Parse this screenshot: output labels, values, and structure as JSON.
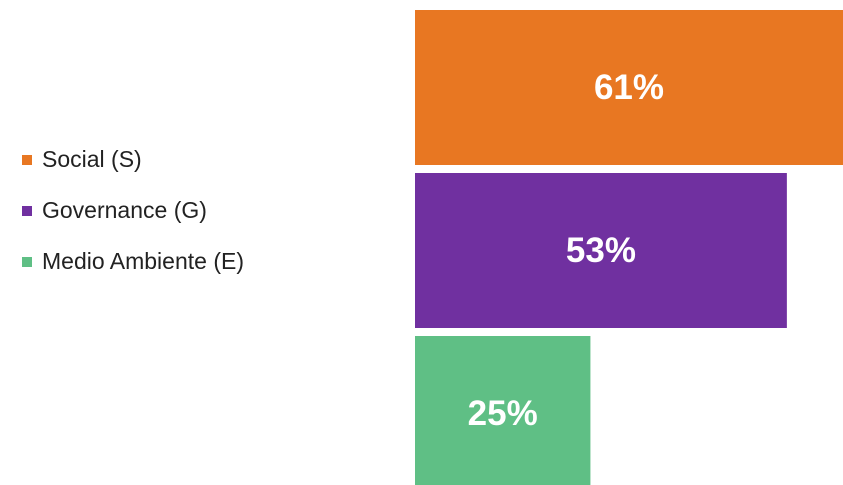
{
  "chart_data": {
    "type": "bar",
    "orientation": "horizontal",
    "categories": [
      "Social (S)",
      "Governance (G)",
      "Medio Ambiente (E)"
    ],
    "values": [
      61,
      53,
      25
    ],
    "value_labels": [
      "61%",
      "53%",
      "25%"
    ],
    "colors": [
      "#e87722",
      "#7030a0",
      "#5fbf85"
    ],
    "legend": "left"
  }
}
